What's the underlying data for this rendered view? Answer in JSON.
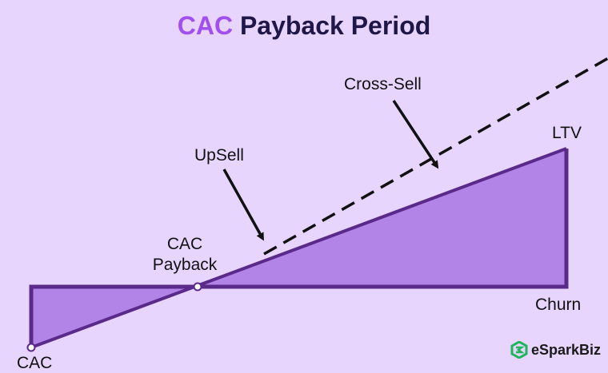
{
  "title": {
    "accent": "CAC",
    "rest": "Payback Period"
  },
  "labels": {
    "cac": "CAC",
    "cac_payback_line1": "CAC",
    "cac_payback_line2": "Payback",
    "upsell": "UpSell",
    "cross_sell": "Cross-Sell",
    "ltv": "LTV",
    "churn": "Churn"
  },
  "brand": {
    "name": "eSparkBiz",
    "icon": "esparkbiz-logo-icon"
  },
  "colors": {
    "background": "#e8d5fd",
    "fill": "#b384e8",
    "stroke": "#5a2a8a",
    "accent": "#a24ff0",
    "title": "#1e1747",
    "logo": "#1fb55a"
  }
}
